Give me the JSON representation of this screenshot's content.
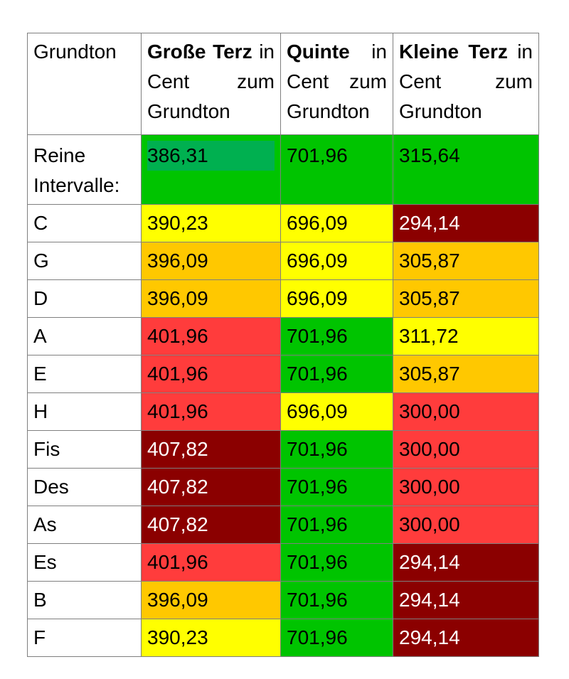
{
  "colors": {
    "green": "#00c400",
    "yellow": "#ffff00",
    "orange": "#ffc800",
    "red": "#ff3c3c",
    "darkred": "#8b0000"
  },
  "header": {
    "col0": "Grundton",
    "col1_bold": "Große Terz",
    "col1_rest": " in Cent zum Grundton",
    "col2_bold": "Quinte",
    "col2_rest": " in Cent zum Grundton",
    "col3_bold": "Kleine Terz",
    "col3_rest": " in Cent zum Grundton"
  },
  "rows": [
    {
      "label": "Reine Intervalle:",
      "terz": "386,31",
      "quinte": "701,96",
      "kleine": "315,64",
      "c1": "green",
      "c2": "green",
      "c3": "green"
    },
    {
      "label": "C",
      "terz": "390,23",
      "quinte": "696,09",
      "kleine": "294,14",
      "c1": "yellow",
      "c2": "yellow",
      "c3": "darkred"
    },
    {
      "label": "G",
      "terz": "396,09",
      "quinte": "696,09",
      "kleine": "305,87",
      "c1": "orange",
      "c2": "yellow",
      "c3": "orange"
    },
    {
      "label": "D",
      "terz": "396,09",
      "quinte": "696,09",
      "kleine": "305,87",
      "c1": "orange",
      "c2": "yellow",
      "c3": "orange"
    },
    {
      "label": "A",
      "terz": "401,96",
      "quinte": "701,96",
      "kleine": "311,72",
      "c1": "red",
      "c2": "green",
      "c3": "yellow"
    },
    {
      "label": "E",
      "terz": "401,96",
      "quinte": "701,96",
      "kleine": "305,87",
      "c1": "red",
      "c2": "green",
      "c3": "orange"
    },
    {
      "label": "H",
      "terz": "401,96",
      "quinte": "696,09",
      "kleine": "300,00",
      "c1": "red",
      "c2": "yellow",
      "c3": "red"
    },
    {
      "label": "Fis",
      "terz": "407,82",
      "quinte": "701,96",
      "kleine": "300,00",
      "c1": "darkred",
      "c2": "green",
      "c3": "red"
    },
    {
      "label": "Des",
      "terz": "407,82",
      "quinte": "701,96",
      "kleine": "300,00",
      "c1": "darkred",
      "c2": "green",
      "c3": "red"
    },
    {
      "label": "As",
      "terz": "407,82",
      "quinte": "701,96",
      "kleine": "300,00",
      "c1": "darkred",
      "c2": "green",
      "c3": "red"
    },
    {
      "label": "Es",
      "terz": "401,96",
      "quinte": "701,96",
      "kleine": "294,14",
      "c1": "red",
      "c2": "green",
      "c3": "darkred"
    },
    {
      "label": "B",
      "terz": "396,09",
      "quinte": "701,96",
      "kleine": "294,14",
      "c1": "orange",
      "c2": "green",
      "c3": "darkred"
    },
    {
      "label": "F",
      "terz": "390,23",
      "quinte": "701,96",
      "kleine": "294,14",
      "c1": "yellow",
      "c2": "green",
      "c3": "darkred"
    }
  ]
}
